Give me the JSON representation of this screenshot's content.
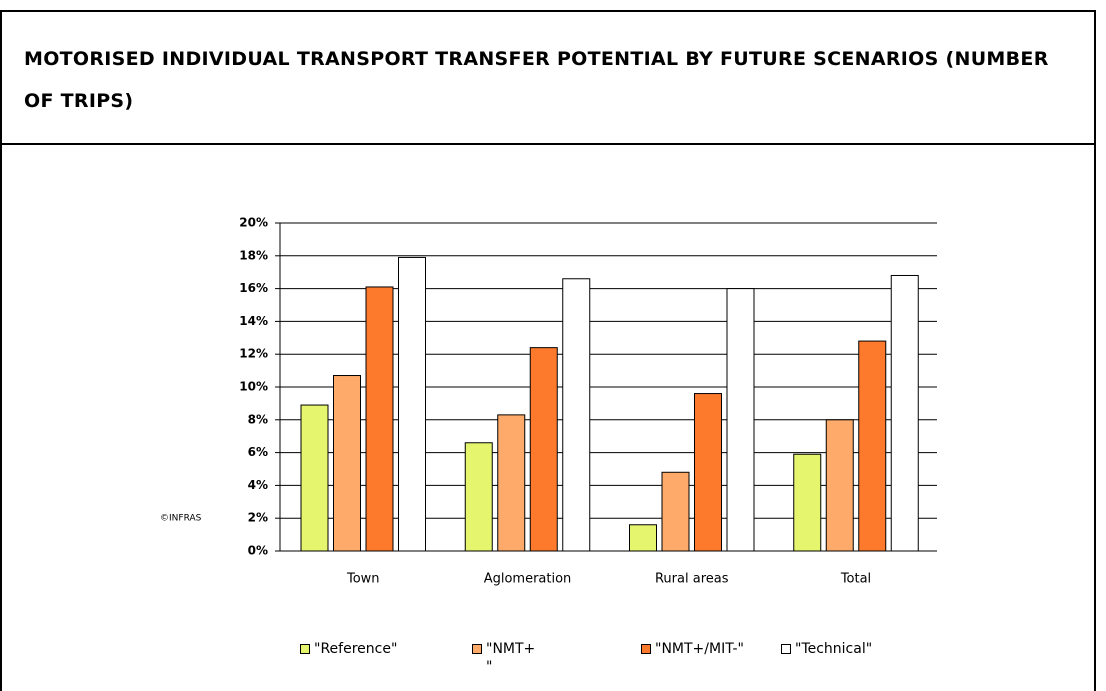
{
  "chart_data": {
    "type": "bar",
    "title": "MOTORISED INDIVIDUAL TRANSPORT TRANSFER POTENTIAL BY FUTURE SCENARIOS (NUMBER OF TRIPS)",
    "source": "©INFRAS",
    "categories": [
      "Town",
      "Aglomeration",
      "Rural areas",
      "Total"
    ],
    "series": [
      {
        "name": "\"Reference\"",
        "color": "#e5f56d",
        "values": [
          8.9,
          6.6,
          1.6,
          5.9
        ]
      },
      {
        "name": "\"NMT+ \"",
        "color": "#fdaa6a",
        "values": [
          10.7,
          8.3,
          4.8,
          8.0
        ]
      },
      {
        "name": "\"NMT+/MIT-\"",
        "color": "#fd7a2d",
        "values": [
          16.1,
          12.4,
          9.6,
          12.8
        ]
      },
      {
        "name": "\"Technical\"",
        "color": "#ffffff",
        "values": [
          17.9,
          16.6,
          16.0,
          16.8
        ]
      }
    ],
    "ylim": [
      0,
      20
    ],
    "yticks": [
      {
        "value": 0,
        "label": "0%"
      },
      {
        "value": 2,
        "label": "2%"
      },
      {
        "value": 4,
        "label": "4%"
      },
      {
        "value": 6,
        "label": "6%"
      },
      {
        "value": 8,
        "label": "8%"
      },
      {
        "value": 10,
        "label": "10%"
      },
      {
        "value": 12,
        "label": "12%"
      },
      {
        "value": 14,
        "label": "14%"
      },
      {
        "value": 16,
        "label": "16%"
      },
      {
        "value": 18,
        "label": "18%"
      },
      {
        "value": 20,
        "label": "20%"
      }
    ],
    "grid": true
  }
}
